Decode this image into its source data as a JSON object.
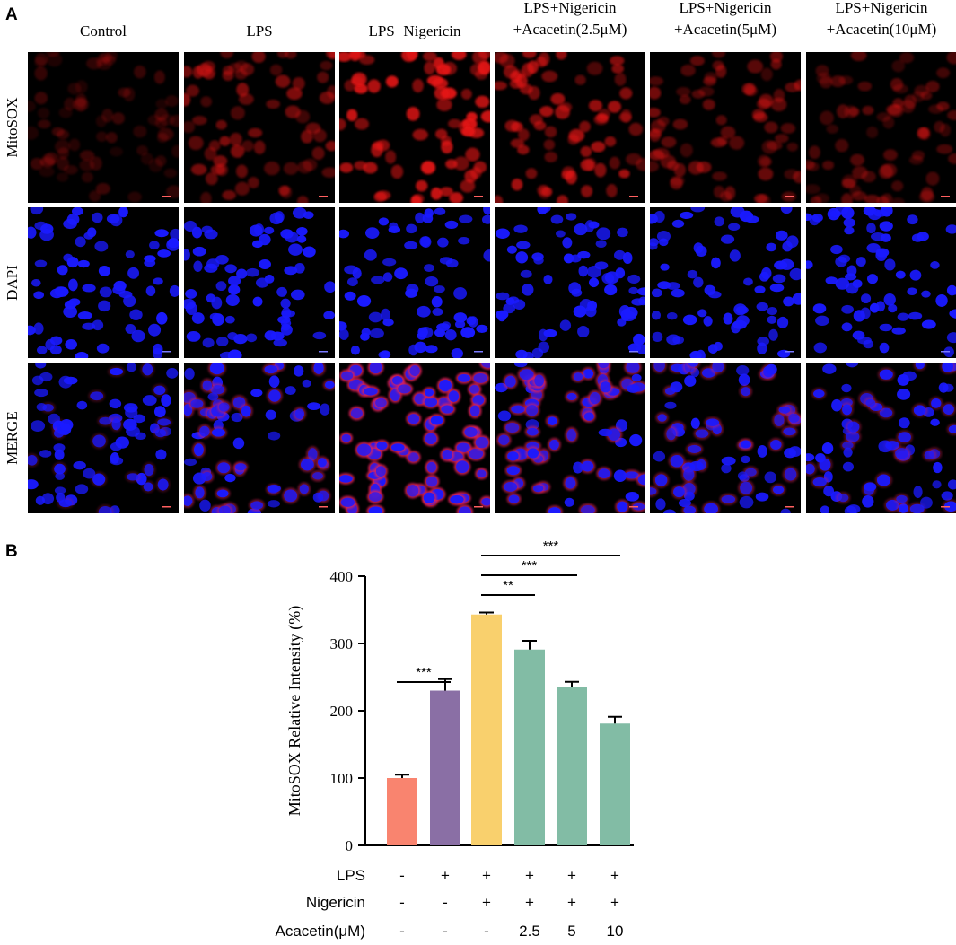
{
  "panel_a": {
    "letter": "A",
    "columns": [
      [
        "Control"
      ],
      [
        "LPS"
      ],
      [
        "LPS+Nigericin"
      ],
      [
        "LPS+Nigericin",
        "+Acacetin(2.5μM)"
      ],
      [
        "LPS+Nigericin",
        "+Acacetin(5μM)"
      ],
      [
        "LPS+Nigericin",
        "+Acacetin(10μM)"
      ]
    ],
    "rows": [
      "MitoSOX",
      "DAPI",
      "MERGE"
    ],
    "channel_colors": {
      "mitosox": "#e61414",
      "dapi": "#1a1aff",
      "merge_red": "#e0205a"
    }
  },
  "panel_b": {
    "letter": "B",
    "chart_data": {
      "type": "bar",
      "ylabel": "MitoSOX Relative Intensity (%)",
      "xlabel": "",
      "ylim": [
        0,
        400
      ],
      "yticks": [
        0,
        100,
        200,
        300,
        400
      ],
      "categories": [
        "Control",
        "LPS",
        "LPS+Nigericin",
        "LPS+Nigericin+Acacetin 2.5",
        "LPS+Nigericin+Acacetin 5",
        "LPS+Nigericin+Acacetin 10"
      ],
      "values": [
        100,
        230,
        343,
        291,
        235,
        181
      ],
      "errors": [
        5,
        17,
        3,
        13,
        8,
        10
      ],
      "colors": [
        "#f9846f",
        "#8a6fa5",
        "#f9d06d",
        "#82bca5",
        "#82bca5",
        "#82bca5"
      ],
      "significance": [
        {
          "from": 0,
          "to": 1,
          "label": "***"
        },
        {
          "from": 2,
          "to": 3,
          "label": "**"
        },
        {
          "from": 2,
          "to": 4,
          "label": "***"
        },
        {
          "from": 2,
          "to": 5,
          "label": "***"
        }
      ],
      "treatments": [
        {
          "label": "LPS",
          "values": [
            "-",
            "+",
            "+",
            "+",
            "+",
            "+"
          ]
        },
        {
          "label": "Nigericin",
          "values": [
            "-",
            "-",
            "+",
            "+",
            "+",
            "+"
          ]
        },
        {
          "label": "Acacetin(μM)",
          "values": [
            "-",
            "-",
            "-",
            "2.5",
            "5",
            "10"
          ]
        }
      ]
    }
  }
}
